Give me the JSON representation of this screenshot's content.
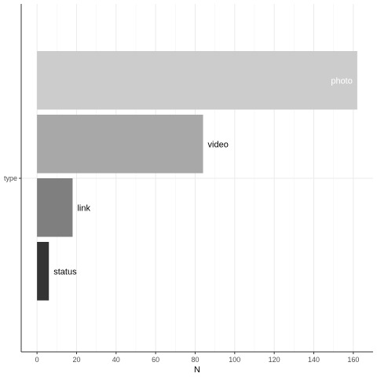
{
  "chart_data": {
    "type": "bar",
    "orientation": "horizontal",
    "title": "",
    "xlabel": "N",
    "ylabel": "",
    "y_tick_labels": [
      "type"
    ],
    "xlim": [
      -8,
      170
    ],
    "x_ticks": [
      0,
      20,
      40,
      60,
      80,
      100,
      120,
      140,
      160
    ],
    "x_tick_labels": [
      "0",
      "20",
      "40",
      "60",
      "80",
      "100",
      "120",
      "140",
      "160"
    ],
    "grid": true,
    "legend": "none",
    "categories": [
      "photo",
      "video",
      "link",
      "status"
    ],
    "values": [
      162,
      84,
      18,
      6
    ],
    "label_colors": [
      "#ffffff",
      "#000000",
      "#000000",
      "#000000"
    ],
    "colors": [
      "#cccccc",
      "#a8a8a8",
      "#7f7f7f",
      "#333333"
    ]
  }
}
